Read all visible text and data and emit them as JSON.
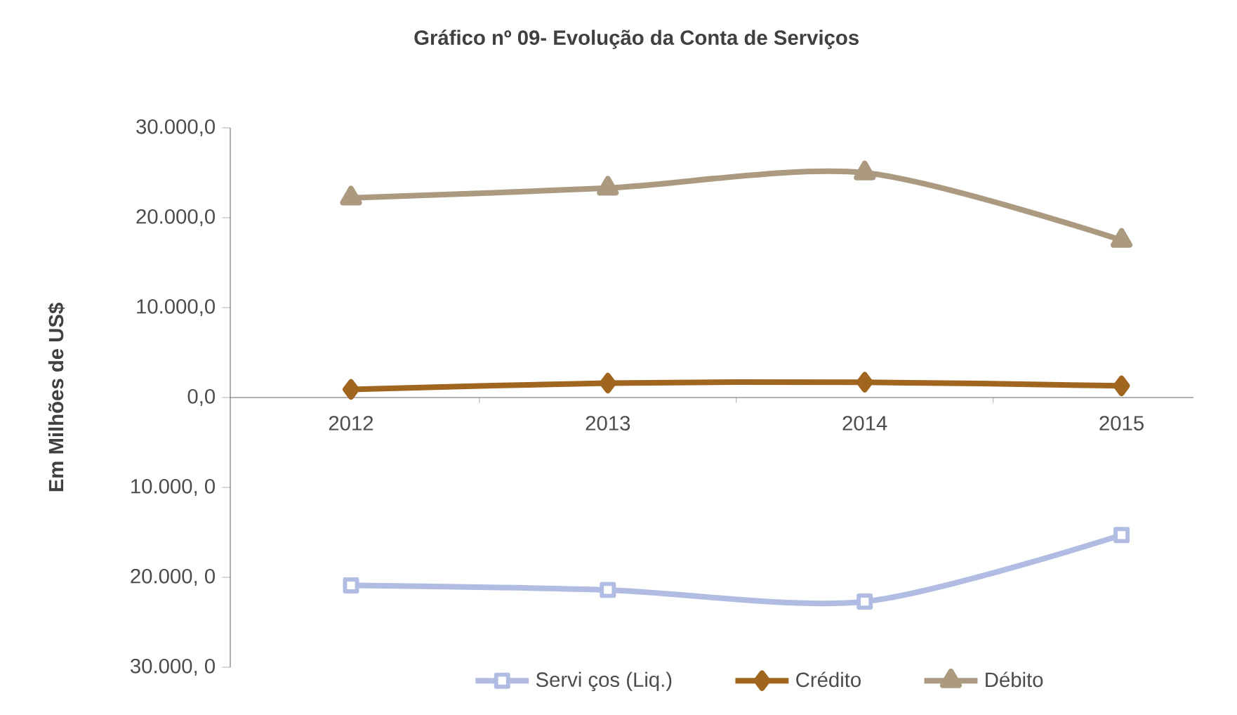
{
  "chart_data": {
    "type": "line",
    "title": "Gráfico nº 09- Evolução da Conta de Serviços",
    "ylabel": "Em Milhões de US$",
    "categories": [
      "2012",
      "2013",
      "2014",
      "2015"
    ],
    "series": [
      {
        "name": "Servi ços (Liq.)",
        "color": "#b0bce2",
        "marker": "square",
        "values": [
          -20900,
          -21400,
          -22700,
          -15300
        ]
      },
      {
        "name": "Crédito",
        "color": "#a0651f",
        "marker": "diamond",
        "values": [
          900,
          1600,
          1700,
          1300
        ]
      },
      {
        "name": "Débito",
        "color": "#ab9a80",
        "marker": "triangle",
        "values": [
          22200,
          23300,
          25000,
          17500
        ]
      }
    ],
    "ylim": [
      -30000,
      30000
    ],
    "yticks": [
      {
        "value": 30000,
        "label": "30.000,0"
      },
      {
        "value": 20000,
        "label": "20.000,0"
      },
      {
        "value": 10000,
        "label": "10.000,0"
      },
      {
        "value": 0,
        "label": "0,0"
      },
      {
        "value": -10000,
        "label": "10.000, 0"
      },
      {
        "value": -20000,
        "label": "20.000, 0"
      },
      {
        "value": -30000,
        "label": "30.000, 0"
      }
    ],
    "legend": "bottom",
    "grid": false
  }
}
